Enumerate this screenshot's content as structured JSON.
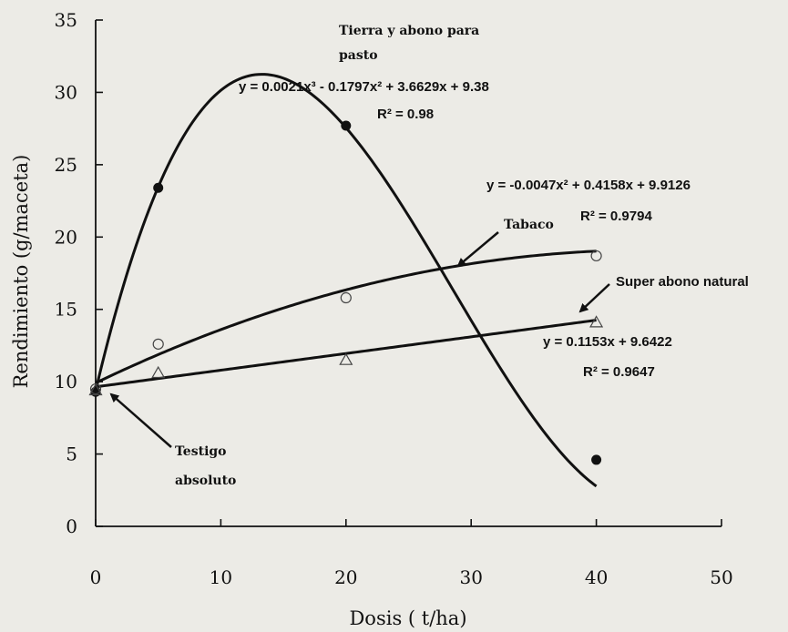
{
  "chart_data": {
    "type": "scatter",
    "xlabel": "Dosis ( t/ha)",
    "ylabel": "Rendimiento (g/maceta)",
    "xlim": [
      0,
      50
    ],
    "ylim": [
      0,
      35
    ],
    "xticks": [
      0,
      10,
      20,
      30,
      40,
      50
    ],
    "yticks": [
      0,
      5,
      10,
      15,
      20,
      25,
      30,
      35
    ],
    "grid": false,
    "series": [
      {
        "name": "Tierra y abono para pasto",
        "marker": "filled-circle",
        "x": [
          0,
          5,
          20,
          40
        ],
        "y": [
          9.3,
          23.4,
          27.7,
          4.6
        ],
        "fit": {
          "kind": "poly3",
          "coef": [
            0.0021,
            -0.1797,
            3.6629,
            9.38
          ]
        }
      },
      {
        "name": "Tabaco",
        "marker": "open-circle",
        "x": [
          0,
          5,
          20,
          40
        ],
        "y": [
          9.5,
          12.6,
          15.8,
          18.7
        ],
        "fit": {
          "kind": "poly2",
          "coef": [
            -0.0047,
            0.4158,
            9.9126
          ]
        }
      },
      {
        "name": "Super abono natural",
        "marker": "open-triangle",
        "x": [
          0,
          5,
          20,
          40
        ],
        "y": [
          9.4,
          10.6,
          11.5,
          14.1
        ],
        "fit": {
          "kind": "linear",
          "coef": [
            0.1153,
            9.6422
          ]
        }
      }
    ],
    "annotations": {
      "tierra_line1": "Tierra y abono para",
      "tierra_line2": "pasto",
      "tierra_eq": "y = 0.0021x³ - 0.1797x² + 3.6629x + 9.38",
      "tierra_r2": "R² = 0.98",
      "tabaco_eq": "y = -0.0047x² + 0.4158x + 9.9126",
      "tabaco_r2": "R² = 0.9794",
      "tabaco_label": "Tabaco",
      "super_label": "Super abono natural",
      "super_eq": "y = 0.1153x + 9.6422",
      "super_r2": "R² = 0.9647",
      "testigo_line1": "Testigo",
      "testigo_line2": "absoluto"
    },
    "colors": {
      "ink": "#111111",
      "background": "#ecebe6"
    }
  }
}
